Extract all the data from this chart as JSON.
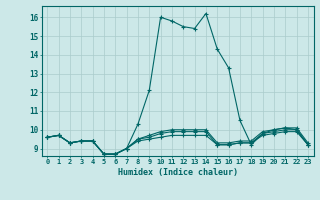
{
  "xlabel": "Humidex (Indice chaleur)",
  "ylabel": "",
  "background_color": "#cce8e8",
  "grid_color": "#aacccc",
  "line_color": "#006666",
  "xlim": [
    -0.5,
    23.5
  ],
  "ylim": [
    8.6,
    16.6
  ],
  "xticks": [
    0,
    1,
    2,
    3,
    4,
    5,
    6,
    7,
    8,
    9,
    10,
    11,
    12,
    13,
    14,
    15,
    16,
    17,
    18,
    19,
    20,
    21,
    22,
    23
  ],
  "yticks": [
    9,
    10,
    11,
    12,
    13,
    14,
    15,
    16
  ],
  "series": [
    [
      9.6,
      9.7,
      9.3,
      9.4,
      9.4,
      8.7,
      8.7,
      9.0,
      10.3,
      12.1,
      16.0,
      15.8,
      15.5,
      15.4,
      16.2,
      14.3,
      13.3,
      10.5,
      9.2,
      9.8,
      10.0,
      10.1,
      10.0,
      9.2
    ],
    [
      9.6,
      9.7,
      9.3,
      9.4,
      9.4,
      8.7,
      8.7,
      9.0,
      9.4,
      9.5,
      9.6,
      9.7,
      9.7,
      9.7,
      9.7,
      9.2,
      9.2,
      9.3,
      9.3,
      9.7,
      9.8,
      9.9,
      9.9,
      9.2
    ],
    [
      9.6,
      9.7,
      9.3,
      9.4,
      9.4,
      8.7,
      8.7,
      9.0,
      9.5,
      9.6,
      9.8,
      9.9,
      9.9,
      9.9,
      9.9,
      9.2,
      9.2,
      9.3,
      9.3,
      9.8,
      9.9,
      10.0,
      10.0,
      9.2
    ],
    [
      9.6,
      9.7,
      9.3,
      9.4,
      9.4,
      8.7,
      8.7,
      9.0,
      9.5,
      9.7,
      9.9,
      10.0,
      10.0,
      10.0,
      10.0,
      9.3,
      9.3,
      9.4,
      9.4,
      9.9,
      10.0,
      10.1,
      10.1,
      9.3
    ]
  ]
}
